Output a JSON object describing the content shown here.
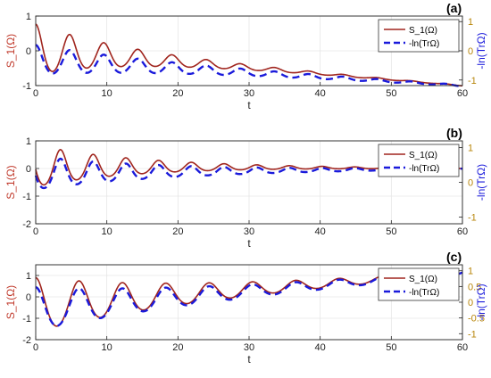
{
  "figure": {
    "background": "#ffffff",
    "colors": {
      "s1_line": "#a0251e",
      "tr_line": "#1a1adb",
      "left_axis_label": "#c0392b",
      "right_axis_label": "#1a1adb",
      "right_tick_color": "#b8860b",
      "grid": "#e6e6e6"
    }
  },
  "chart_data": [
    {
      "type": "line",
      "panel_label": "(a)",
      "xlabel": "t",
      "ylabel_left": "S_1(Ω)",
      "ylabel_right": "-ln(TrΩ)",
      "xlim": [
        0,
        60
      ],
      "ylim": [
        -1,
        1
      ],
      "x_ticks": [
        0,
        10,
        20,
        30,
        40,
        50,
        60
      ],
      "y_ticks_left": [
        -1,
        0,
        1
      ],
      "y_ticks_right": [
        -1,
        0,
        1
      ],
      "grid": true,
      "legend": {
        "position": "top-right",
        "entries": [
          "S_1(Ω)",
          "-ln(TrΩ)"
        ]
      },
      "series": [
        {
          "name": "S_1(Ω)",
          "style": "solid",
          "model": {
            "type": "damped_cosine",
            "offset_start": 0.05,
            "offset_end": -1.0,
            "amp": 0.72,
            "decay": 0.075,
            "period": 4.8,
            "phase": 0.0,
            "skew": 0.2
          }
        },
        {
          "name": "-ln(TrΩ)",
          "style": "dashed",
          "model": {
            "type": "damped_cosine",
            "offset_start": -0.25,
            "offset_end": -1.0,
            "amp": 0.42,
            "decay": 0.05,
            "period": 4.8,
            "phase": 0.0,
            "skew": 0.2
          }
        }
      ]
    },
    {
      "type": "line",
      "panel_label": "(b)",
      "xlabel": "t",
      "ylabel_left": "S_1(Ω)",
      "ylabel_right": "-ln(TrΩ)",
      "xlim": [
        0,
        60
      ],
      "ylim": [
        -2,
        1
      ],
      "x_ticks": [
        0,
        10,
        20,
        30,
        40,
        50,
        60
      ],
      "y_ticks_left": [
        -2,
        -1,
        0,
        1
      ],
      "y_ticks_right": [
        -1,
        0,
        1
      ],
      "grid": true,
      "legend": {
        "position": "top-right",
        "entries": [
          "S_1(Ω)",
          "-ln(TrΩ)"
        ]
      },
      "series": [
        {
          "name": "S_1(Ω)",
          "style": "solid",
          "model": {
            "type": "damped_cosine",
            "offset_start": 0.1,
            "offset_end": 0.0,
            "amp": 0.75,
            "decay": 0.07,
            "period": 4.6,
            "phase": 1.5,
            "skew": 0.25
          }
        },
        {
          "name": "-ln(TrΩ)",
          "style": "dashed",
          "model": {
            "type": "damped_cosine",
            "offset_start": -0.15,
            "offset_end": 0.0,
            "amp": 0.6,
            "decay": 0.055,
            "period": 4.6,
            "phase": 1.5,
            "skew": 0.25
          }
        }
      ]
    },
    {
      "type": "line",
      "panel_label": "(c)",
      "xlabel": "t",
      "ylabel_left": "S_1(Ω)",
      "ylabel_right": "-ln(TrΩ)",
      "xlim": [
        0,
        60
      ],
      "ylim": [
        -2,
        1.5
      ],
      "x_ticks": [
        0,
        10,
        20,
        30,
        40,
        50,
        60
      ],
      "y_ticks_left": [
        -2,
        -1,
        0,
        1
      ],
      "y_ticks_right": [
        -1,
        -0.5,
        0,
        0.5,
        1
      ],
      "grid": true,
      "legend": {
        "position": "top-right",
        "entries": [
          "S_1(Ω)",
          "-ln(TrΩ)"
        ]
      },
      "series": [
        {
          "name": "S_1(Ω)",
          "style": "solid",
          "model": {
            "type": "growing_offset_cosine",
            "offset_start": -0.35,
            "offset_end": 1.1,
            "amp": 1.25,
            "decay": 0.045,
            "period": 6.1,
            "phase": 0.0,
            "skew": 0.15
          }
        },
        {
          "name": "-ln(TrΩ)",
          "style": "dashed",
          "model": {
            "type": "growing_offset_cosine",
            "offset_start": -0.55,
            "offset_end": 1.1,
            "amp": 1.0,
            "decay": 0.04,
            "period": 6.1,
            "phase": 0.0,
            "skew": 0.15
          }
        }
      ]
    }
  ]
}
